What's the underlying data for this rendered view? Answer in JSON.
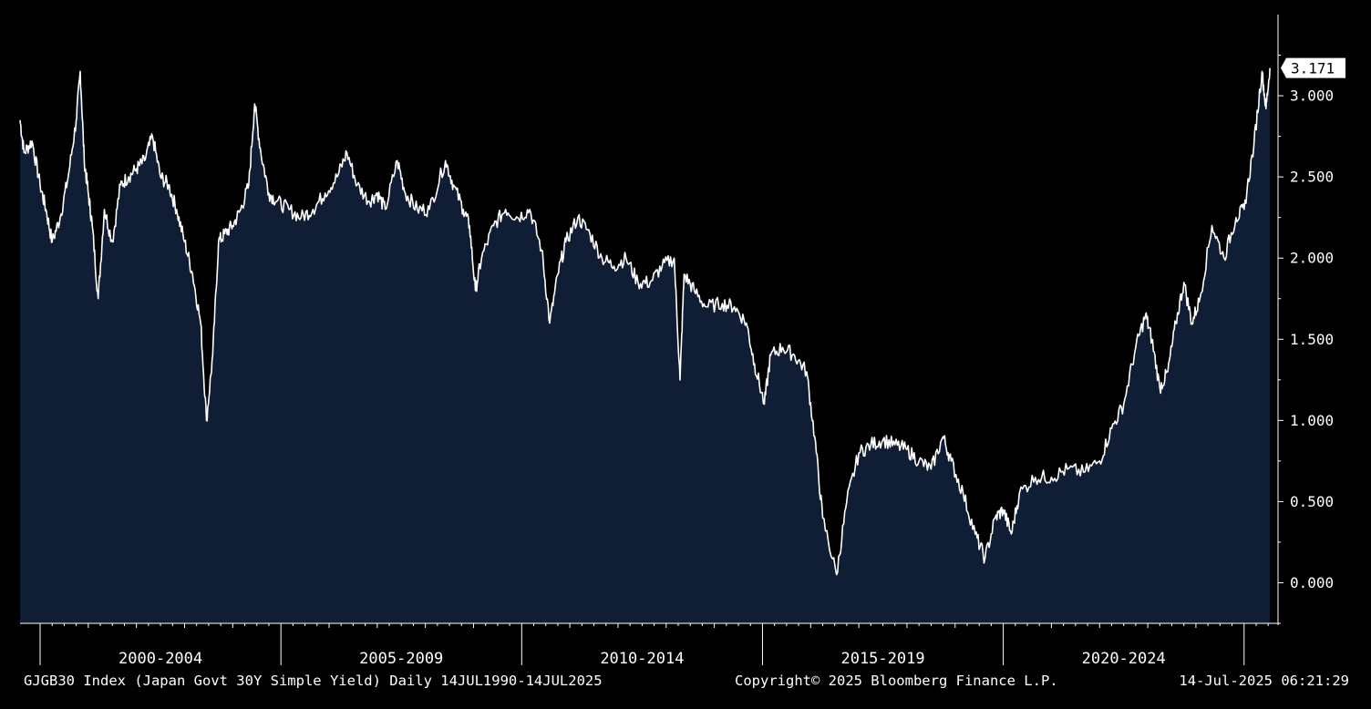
{
  "chart_data": {
    "type": "area",
    "title": "",
    "xlabel": "",
    "ylabel": "",
    "y_ticks": [
      "0.000",
      "0.500",
      "1.000",
      "1.500",
      "2.000",
      "2.500",
      "3.000"
    ],
    "y_tick_values": [
      0,
      0.5,
      1.0,
      1.5,
      2.0,
      2.5,
      3.0
    ],
    "ylim": [
      -0.25,
      3.5
    ],
    "x_categories": [
      "2000-2004",
      "2005-2009",
      "2010-2014",
      "2015-2019",
      "2020-2024"
    ],
    "xlim": [
      "1999-08-01",
      "2025-09-15"
    ],
    "last_value": 3.171,
    "last_value_label": "3.171",
    "grid": false,
    "colors": {
      "background": "#000000",
      "area_fill": "#0f1d35",
      "line": "#ffffff",
      "last_value_box": "#ffffff"
    },
    "series": [
      {
        "values": [
          [
            "1999-08-01",
            2.85
          ],
          [
            "1999-09-01",
            2.65
          ],
          [
            "1999-11-01",
            2.72
          ],
          [
            "2000-01-01",
            2.45
          ],
          [
            "2000-02-15",
            2.3
          ],
          [
            "2000-04-01",
            2.1
          ],
          [
            "2000-06-01",
            2.25
          ],
          [
            "2000-08-01",
            2.5
          ],
          [
            "2000-10-01",
            2.85
          ],
          [
            "2000-11-01",
            3.15
          ],
          [
            "2000-12-01",
            2.6
          ],
          [
            "2001-01-01",
            2.4
          ],
          [
            "2001-02-01",
            2.2
          ],
          [
            "2001-03-15",
            1.75
          ],
          [
            "2001-05-01",
            2.3
          ],
          [
            "2001-07-01",
            2.1
          ],
          [
            "2001-09-01",
            2.45
          ],
          [
            "2001-11-01",
            2.5
          ],
          [
            "2002-01-01",
            2.55
          ],
          [
            "2002-03-01",
            2.6
          ],
          [
            "2002-05-01",
            2.75
          ],
          [
            "2002-07-01",
            2.5
          ],
          [
            "2002-09-01",
            2.45
          ],
          [
            "2002-11-01",
            2.3
          ],
          [
            "2003-01-01",
            2.1
          ],
          [
            "2003-03-01",
            1.9
          ],
          [
            "2003-05-01",
            1.6
          ],
          [
            "2003-06-15",
            1.0
          ],
          [
            "2003-08-01",
            1.4
          ],
          [
            "2003-09-15",
            2.1
          ],
          [
            "2003-11-01",
            2.15
          ],
          [
            "2004-01-01",
            2.2
          ],
          [
            "2004-03-01",
            2.3
          ],
          [
            "2004-05-01",
            2.45
          ],
          [
            "2004-06-15",
            2.95
          ],
          [
            "2004-08-01",
            2.65
          ],
          [
            "2004-10-01",
            2.4
          ],
          [
            "2004-12-01",
            2.35
          ],
          [
            "2005-03-01",
            2.3
          ],
          [
            "2005-06-01",
            2.25
          ],
          [
            "2005-09-01",
            2.3
          ],
          [
            "2005-12-01",
            2.4
          ],
          [
            "2006-03-01",
            2.5
          ],
          [
            "2006-05-15",
            2.65
          ],
          [
            "2006-08-01",
            2.45
          ],
          [
            "2006-11-01",
            2.35
          ],
          [
            "2007-01-01",
            2.4
          ],
          [
            "2007-03-01",
            2.3
          ],
          [
            "2007-06-01",
            2.6
          ],
          [
            "2007-08-01",
            2.4
          ],
          [
            "2007-11-01",
            2.3
          ],
          [
            "2008-02-01",
            2.3
          ],
          [
            "2008-06-01",
            2.6
          ],
          [
            "2008-08-01",
            2.45
          ],
          [
            "2008-10-15",
            2.3
          ],
          [
            "2008-12-01",
            2.2
          ],
          [
            "2009-01-15",
            1.8
          ],
          [
            "2009-03-01",
            2.0
          ],
          [
            "2009-06-01",
            2.2
          ],
          [
            "2009-09-01",
            2.3
          ],
          [
            "2009-12-01",
            2.25
          ],
          [
            "2010-03-01",
            2.3
          ],
          [
            "2010-06-01",
            2.05
          ],
          [
            "2010-08-01",
            1.6
          ],
          [
            "2010-10-01",
            1.9
          ],
          [
            "2010-12-01",
            2.1
          ],
          [
            "2011-03-01",
            2.25
          ],
          [
            "2011-06-01",
            2.15
          ],
          [
            "2011-09-01",
            2.0
          ],
          [
            "2011-12-01",
            1.95
          ],
          [
            "2012-03-01",
            2.0
          ],
          [
            "2012-06-01",
            1.85
          ],
          [
            "2012-09-01",
            1.85
          ],
          [
            "2012-12-01",
            1.95
          ],
          [
            "2013-03-01",
            2.0
          ],
          [
            "2013-04-15",
            1.25
          ],
          [
            "2013-05-15",
            1.9
          ],
          [
            "2013-08-01",
            1.8
          ],
          [
            "2013-11-01",
            1.7
          ],
          [
            "2014-03-01",
            1.72
          ],
          [
            "2014-06-01",
            1.7
          ],
          [
            "2014-09-01",
            1.6
          ],
          [
            "2014-11-01",
            1.35
          ],
          [
            "2015-01-15",
            1.1
          ],
          [
            "2015-03-01",
            1.4
          ],
          [
            "2015-06-01",
            1.45
          ],
          [
            "2015-09-01",
            1.4
          ],
          [
            "2015-12-01",
            1.3
          ],
          [
            "2016-02-01",
            0.9
          ],
          [
            "2016-04-01",
            0.4
          ],
          [
            "2016-07-15",
            0.05
          ],
          [
            "2016-10-01",
            0.5
          ],
          [
            "2017-01-01",
            0.8
          ],
          [
            "2017-04-01",
            0.85
          ],
          [
            "2017-07-01",
            0.88
          ],
          [
            "2017-10-01",
            0.85
          ],
          [
            "2018-01-01",
            0.82
          ],
          [
            "2018-04-01",
            0.75
          ],
          [
            "2018-07-01",
            0.7
          ],
          [
            "2018-10-01",
            0.9
          ],
          [
            "2018-12-01",
            0.75
          ],
          [
            "2019-03-01",
            0.55
          ],
          [
            "2019-06-01",
            0.3
          ],
          [
            "2019-08-15",
            0.15
          ],
          [
            "2019-11-01",
            0.4
          ],
          [
            "2020-01-01",
            0.45
          ],
          [
            "2020-03-01",
            0.3
          ],
          [
            "2020-05-01",
            0.55
          ],
          [
            "2020-09-01",
            0.65
          ],
          [
            "2021-01-01",
            0.65
          ],
          [
            "2021-05-01",
            0.7
          ],
          [
            "2021-09-01",
            0.68
          ],
          [
            "2022-01-01",
            0.75
          ],
          [
            "2022-04-01",
            0.95
          ],
          [
            "2022-07-01",
            1.1
          ],
          [
            "2022-10-01",
            1.45
          ],
          [
            "2022-12-15",
            1.65
          ],
          [
            "2023-02-01",
            1.5
          ],
          [
            "2023-04-01",
            1.2
          ],
          [
            "2023-06-01",
            1.3
          ],
          [
            "2023-08-01",
            1.6
          ],
          [
            "2023-10-01",
            1.85
          ],
          [
            "2023-12-01",
            1.6
          ],
          [
            "2024-02-01",
            1.75
          ],
          [
            "2024-05-01",
            2.2
          ],
          [
            "2024-08-01",
            2.0
          ],
          [
            "2024-11-01",
            2.25
          ],
          [
            "2025-01-01",
            2.3
          ],
          [
            "2025-03-15",
            2.7
          ],
          [
            "2025-05-15",
            3.15
          ],
          [
            "2025-06-15",
            2.92
          ],
          [
            "2025-07-14",
            3.171
          ]
        ]
      }
    ]
  },
  "footer": {
    "left": "GJGB30 Index (Japan Govt 30Y Simple Yield)  Daily 14JUL1990-14JUL2025",
    "center": "Copyright© 2025 Bloomberg Finance L.P.",
    "right": "14-Jul-2025 06:21:29"
  }
}
